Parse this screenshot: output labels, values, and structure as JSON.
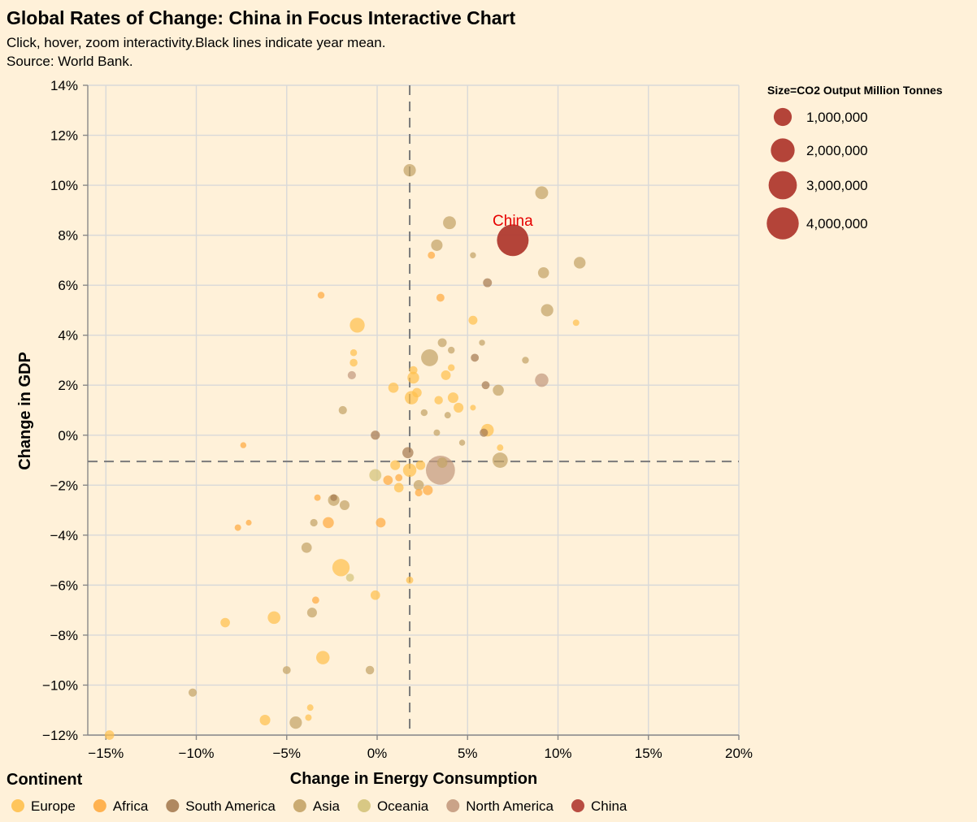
{
  "title": "Global Rates of Change: China in Focus Interactive Chart",
  "subtitle_lines": [
    "Click, hover, zoom interactivity.Black lines indicate year mean.",
    "Source: World Bank."
  ],
  "chart_data": {
    "type": "scatter",
    "title": "Global Rates of Change: China in Focus Interactive Chart",
    "xlabel": "Change in Energy Consumption",
    "ylabel": "Change in GDP",
    "xlim": [
      -16,
      20
    ],
    "ylim": [
      -12,
      14
    ],
    "x_ticks": [
      -15,
      -10,
      -5,
      0,
      5,
      10,
      15,
      20
    ],
    "y_ticks": [
      -12,
      -10,
      -8,
      -6,
      -4,
      -2,
      0,
      2,
      4,
      6,
      8,
      10,
      12,
      14
    ],
    "x_tick_labels": [
      "−15%",
      "−10%",
      "−5%",
      "0%",
      "5%",
      "10%",
      "15%",
      "20%"
    ],
    "y_tick_labels": [
      "−12%",
      "−10%",
      "−8%",
      "−6%",
      "−4%",
      "−2%",
      "0%",
      "2%",
      "4%",
      "6%",
      "8%",
      "10%",
      "12%",
      "14%"
    ],
    "grid": true,
    "mean_x": 1.8,
    "mean_y": -1.05,
    "highlight": {
      "label": "China",
      "x": 7.5,
      "y": 7.8,
      "color": "#e60000"
    },
    "color_legend": {
      "title": "Continent",
      "placement": "bottom",
      "entries": [
        {
          "name": "Europe",
          "color": "#ffc04d"
        },
        {
          "name": "Africa",
          "color": "#ffab40"
        },
        {
          "name": "South America",
          "color": "#a67c52"
        },
        {
          "name": "Asia",
          "color": "#c4a366"
        },
        {
          "name": "Oceania",
          "color": "#d4c37a"
        },
        {
          "name": "North America",
          "color": "#c49a7e"
        },
        {
          "name": "China",
          "color": "#b03a30"
        }
      ]
    },
    "size_legend": {
      "title": "Size=CO2 Output Million Tonnes",
      "placement": "top-right",
      "values": [
        1000000,
        2000000,
        3000000,
        4000000
      ],
      "labels": [
        "1,000,000",
        "2,000,000",
        "3,000,000",
        "4,000,000"
      ]
    },
    "points": [
      {
        "c": "China",
        "x": 7.5,
        "y": 7.8,
        "co2": 3900000
      },
      {
        "c": "North America",
        "x": 3.5,
        "y": -1.4,
        "co2": 3200000
      },
      {
        "c": "North America",
        "x": 9.1,
        "y": 2.2,
        "co2": 450000
      },
      {
        "c": "North America",
        "x": -1.4,
        "y": 2.4,
        "co2": 90000
      },
      {
        "c": "Asia",
        "x": 1.8,
        "y": 10.6,
        "co2": 350000
      },
      {
        "c": "Asia",
        "x": 9.1,
        "y": 9.7,
        "co2": 400000
      },
      {
        "c": "Asia",
        "x": 4.0,
        "y": 8.5,
        "co2": 400000
      },
      {
        "c": "Asia",
        "x": 3.3,
        "y": 7.6,
        "co2": 280000
      },
      {
        "c": "Asia",
        "x": 11.2,
        "y": 6.9,
        "co2": 300000
      },
      {
        "c": "Asia",
        "x": 9.2,
        "y": 6.5,
        "co2": 250000
      },
      {
        "c": "Asia",
        "x": 9.4,
        "y": 5.0,
        "co2": 350000
      },
      {
        "c": "Asia",
        "x": 2.9,
        "y": 3.1,
        "co2": 850000
      },
      {
        "c": "Asia",
        "x": 3.6,
        "y": 3.7,
        "co2": 120000
      },
      {
        "c": "Asia",
        "x": 6.7,
        "y": 1.8,
        "co2": 250000
      },
      {
        "c": "Asia",
        "x": 6.8,
        "y": -1.0,
        "co2": 650000
      },
      {
        "c": "Asia",
        "x": 2.3,
        "y": -2.0,
        "co2": 200000
      },
      {
        "c": "Asia",
        "x": -2.4,
        "y": -2.6,
        "co2": 280000
      },
      {
        "c": "Asia",
        "x": -1.8,
        "y": -2.8,
        "co2": 170000
      },
      {
        "c": "Asia",
        "x": -3.9,
        "y": -4.5,
        "co2": 200000
      },
      {
        "c": "Asia",
        "x": -3.6,
        "y": -7.1,
        "co2": 170000
      },
      {
        "c": "Asia",
        "x": -5.0,
        "y": -9.4,
        "co2": 80000
      },
      {
        "c": "Asia",
        "x": -0.4,
        "y": -9.4,
        "co2": 100000
      },
      {
        "c": "Asia",
        "x": -10.2,
        "y": -10.3,
        "co2": 90000
      },
      {
        "c": "Asia",
        "x": -4.5,
        "y": -11.5,
        "co2": 350000
      },
      {
        "c": "Asia",
        "x": -1.9,
        "y": 1.0,
        "co2": 90000
      },
      {
        "c": "Asia",
        "x": 3.6,
        "y": -1.1,
        "co2": 200000
      },
      {
        "c": "Asia",
        "x": 4.1,
        "y": 3.4,
        "co2": 40000
      },
      {
        "c": "Asia",
        "x": 8.2,
        "y": 3.0,
        "co2": 40000
      },
      {
        "c": "Asia",
        "x": 5.8,
        "y": 3.7,
        "co2": 20000
      },
      {
        "c": "Asia",
        "x": 2.6,
        "y": 0.9,
        "co2": 40000
      },
      {
        "c": "Asia",
        "x": 3.9,
        "y": 0.8,
        "co2": 30000
      },
      {
        "c": "Asia",
        "x": 3.3,
        "y": 0.1,
        "co2": 30000
      },
      {
        "c": "Asia",
        "x": 4.7,
        "y": -0.3,
        "co2": 20000
      },
      {
        "c": "Asia",
        "x": 5.3,
        "y": 7.2,
        "co2": 20000
      },
      {
        "c": "Asia",
        "x": -3.5,
        "y": -3.5,
        "co2": 60000
      },
      {
        "c": "South America",
        "x": 6.1,
        "y": 6.1,
        "co2": 120000
      },
      {
        "c": "South America",
        "x": 5.4,
        "y": 3.1,
        "co2": 80000
      },
      {
        "c": "South America",
        "x": 6.0,
        "y": 2.0,
        "co2": 80000
      },
      {
        "c": "South America",
        "x": 5.9,
        "y": 0.1,
        "co2": 90000
      },
      {
        "c": "South America",
        "x": 1.7,
        "y": -0.7,
        "co2": 250000
      },
      {
        "c": "South America",
        "x": -0.1,
        "y": 0.0,
        "co2": 130000
      },
      {
        "c": "South America",
        "x": -2.4,
        "y": -2.5,
        "co2": 40000
      },
      {
        "c": "Oceania",
        "x": -0.1,
        "y": -1.6,
        "co2": 330000
      },
      {
        "c": "Oceania",
        "x": -1.5,
        "y": -5.7,
        "co2": 80000
      },
      {
        "c": "Europe",
        "x": -1.1,
        "y": 4.4,
        "co2": 600000
      },
      {
        "c": "Europe",
        "x": -2.0,
        "y": -5.3,
        "co2": 900000
      },
      {
        "c": "Europe",
        "x": 1.9,
        "y": 1.5,
        "co2": 450000
      },
      {
        "c": "Europe",
        "x": 2.0,
        "y": 2.3,
        "co2": 300000
      },
      {
        "c": "Europe",
        "x": 1.8,
        "y": -1.4,
        "co2": 450000
      },
      {
        "c": "Europe",
        "x": 6.1,
        "y": 0.2,
        "co2": 380000
      },
      {
        "c": "Europe",
        "x": -3.0,
        "y": -8.9,
        "co2": 450000
      },
      {
        "c": "Europe",
        "x": -5.7,
        "y": -7.3,
        "co2": 380000
      },
      {
        "c": "Europe",
        "x": -8.4,
        "y": -7.5,
        "co2": 150000
      },
      {
        "c": "Europe",
        "x": -6.2,
        "y": -11.4,
        "co2": 220000
      },
      {
        "c": "Europe",
        "x": -14.8,
        "y": -12.0,
        "co2": 150000
      },
      {
        "c": "Europe",
        "x": 0.9,
        "y": 1.9,
        "co2": 200000
      },
      {
        "c": "Europe",
        "x": 3.8,
        "y": 2.4,
        "co2": 160000
      },
      {
        "c": "Europe",
        "x": 4.2,
        "y": 1.5,
        "co2": 220000
      },
      {
        "c": "Europe",
        "x": 4.5,
        "y": 1.1,
        "co2": 170000
      },
      {
        "c": "Europe",
        "x": 3.4,
        "y": 1.4,
        "co2": 100000
      },
      {
        "c": "Europe",
        "x": 2.2,
        "y": 1.7,
        "co2": 150000
      },
      {
        "c": "Europe",
        "x": 1.0,
        "y": -1.2,
        "co2": 170000
      },
      {
        "c": "Europe",
        "x": 1.2,
        "y": -2.1,
        "co2": 150000
      },
      {
        "c": "Europe",
        "x": 2.4,
        "y": -1.2,
        "co2": 150000
      },
      {
        "c": "Europe",
        "x": -0.1,
        "y": -6.4,
        "co2": 150000
      },
      {
        "c": "Europe",
        "x": 5.3,
        "y": 4.6,
        "co2": 120000
      },
      {
        "c": "Europe",
        "x": 2.0,
        "y": 2.6,
        "co2": 90000
      },
      {
        "c": "Europe",
        "x": 4.1,
        "y": 2.7,
        "co2": 40000
      },
      {
        "c": "Europe",
        "x": 1.8,
        "y": -5.8,
        "co2": 50000
      },
      {
        "c": "Europe",
        "x": -1.3,
        "y": 2.9,
        "co2": 70000
      },
      {
        "c": "Europe",
        "x": -1.3,
        "y": 3.3,
        "co2": 40000
      },
      {
        "c": "Europe",
        "x": 6.8,
        "y": -0.5,
        "co2": 30000
      },
      {
        "c": "Europe",
        "x": 11.0,
        "y": 4.5,
        "co2": 30000
      },
      {
        "c": "Europe",
        "x": 5.3,
        "y": 1.1,
        "co2": 15000
      },
      {
        "c": "Europe",
        "x": -3.7,
        "y": -10.9,
        "co2": 30000
      },
      {
        "c": "Europe",
        "x": -3.8,
        "y": -11.3,
        "co2": 30000
      },
      {
        "c": "Africa",
        "x": -2.7,
        "y": -3.5,
        "co2": 250000
      },
      {
        "c": "Africa",
        "x": 0.2,
        "y": -3.5,
        "co2": 160000
      },
      {
        "c": "Africa",
        "x": 0.6,
        "y": -1.8,
        "co2": 150000
      },
      {
        "c": "Africa",
        "x": 2.8,
        "y": -2.2,
        "co2": 180000
      },
      {
        "c": "Africa",
        "x": 3.5,
        "y": 5.5,
        "co2": 80000
      },
      {
        "c": "Africa",
        "x": -3.1,
        "y": 5.6,
        "co2": 40000
      },
      {
        "c": "Africa",
        "x": 3.0,
        "y": 7.2,
        "co2": 50000
      },
      {
        "c": "Africa",
        "x": 2.3,
        "y": -2.3,
        "co2": 60000
      },
      {
        "c": "Africa",
        "x": 1.2,
        "y": -1.7,
        "co2": 50000
      },
      {
        "c": "Africa",
        "x": -3.4,
        "y": -6.6,
        "co2": 50000
      },
      {
        "c": "Africa",
        "x": -3.3,
        "y": -2.5,
        "co2": 30000
      },
      {
        "c": "Africa",
        "x": -7.7,
        "y": -3.7,
        "co2": 30000
      },
      {
        "c": "Africa",
        "x": -7.1,
        "y": -3.5,
        "co2": 15000
      },
      {
        "c": "Africa",
        "x": -7.4,
        "y": -0.4,
        "co2": 20000
      }
    ]
  }
}
